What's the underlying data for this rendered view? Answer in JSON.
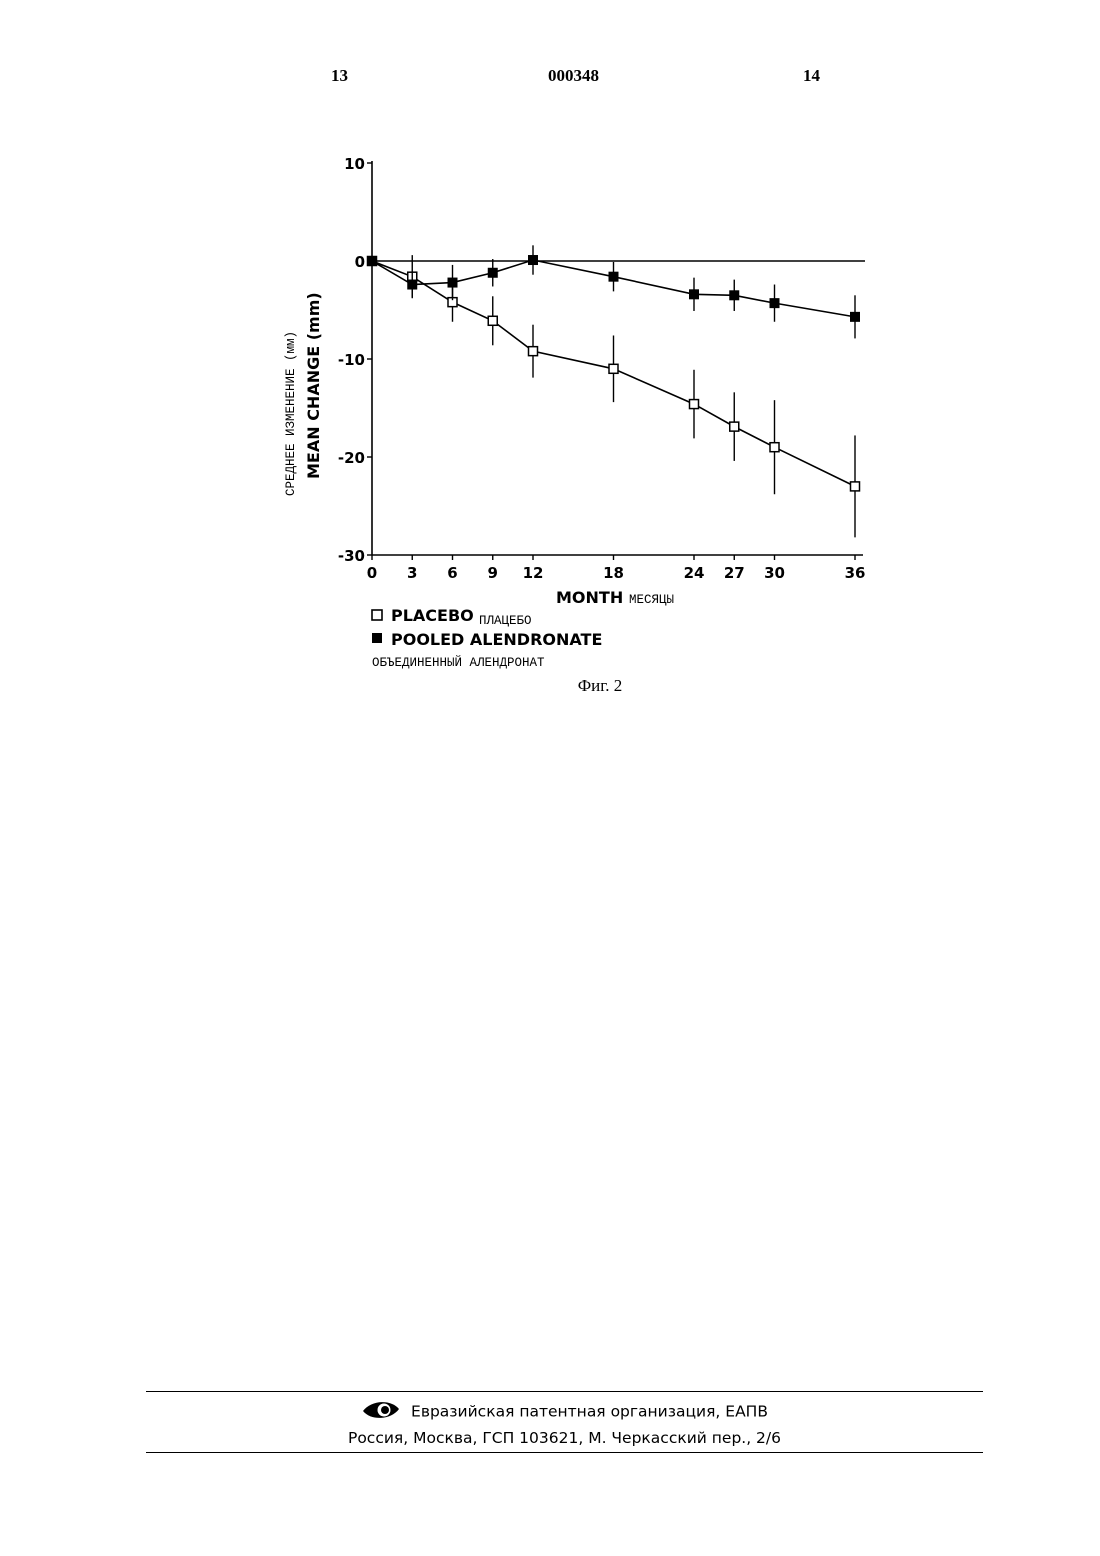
{
  "header": {
    "left_page": "13",
    "doc_number": "000348",
    "right_page": "14"
  },
  "figure_caption": "Фиг. 2",
  "footer": {
    "org": "Евразийская патентная организация, ЕАПВ",
    "address": "Россия, Москва, ГСП 103621, М. Черкасский пер., 2/6"
  },
  "chart_data": {
    "type": "line",
    "ylabel_ru": "СРЕДНЕЕ ИЗМЕНЕНИЕ (мм)",
    "ylabel": "MEAN CHANGE (mm)",
    "xlabel": "MONTH",
    "xlabel_ru": "МЕСЯЦЫ",
    "xlim": [
      0,
      36
    ],
    "ylim": [
      -30,
      10
    ],
    "x_ticks": [
      0,
      3,
      6,
      9,
      12,
      18,
      24,
      27,
      30,
      36
    ],
    "y_ticks": [
      10,
      0,
      -10,
      -20,
      -30
    ],
    "reference_line": 0,
    "legend_placement": "bottom-left",
    "series": [
      {
        "name": "PLACEBO",
        "name_ru": "ПЛАЦЕБО",
        "marker": "open-square",
        "x": [
          0,
          3,
          6,
          9,
          12,
          18,
          24,
          27,
          30,
          36
        ],
        "y": [
          0,
          -1.6,
          -4.2,
          -6.1,
          -9.2,
          -11.0,
          -14.6,
          -16.9,
          -19.0,
          -23.0
        ],
        "err": [
          0,
          2.2,
          2.0,
          2.5,
          2.7,
          3.4,
          3.5,
          3.5,
          4.8,
          5.2
        ]
      },
      {
        "name": "POOLED ALENDRONATE",
        "name_ru": "ОБЪЕДИНЕННЫЙ АЛЕНДРОНАТ",
        "marker": "filled-square",
        "x": [
          0,
          3,
          6,
          9,
          12,
          18,
          24,
          27,
          30,
          36
        ],
        "y": [
          0,
          -2.4,
          -2.2,
          -1.2,
          0.1,
          -1.6,
          -3.4,
          -3.5,
          -4.3,
          -5.7
        ],
        "err": [
          0,
          1.3,
          1.8,
          1.4,
          1.5,
          1.5,
          1.7,
          1.6,
          1.9,
          2.2
        ]
      }
    ]
  }
}
